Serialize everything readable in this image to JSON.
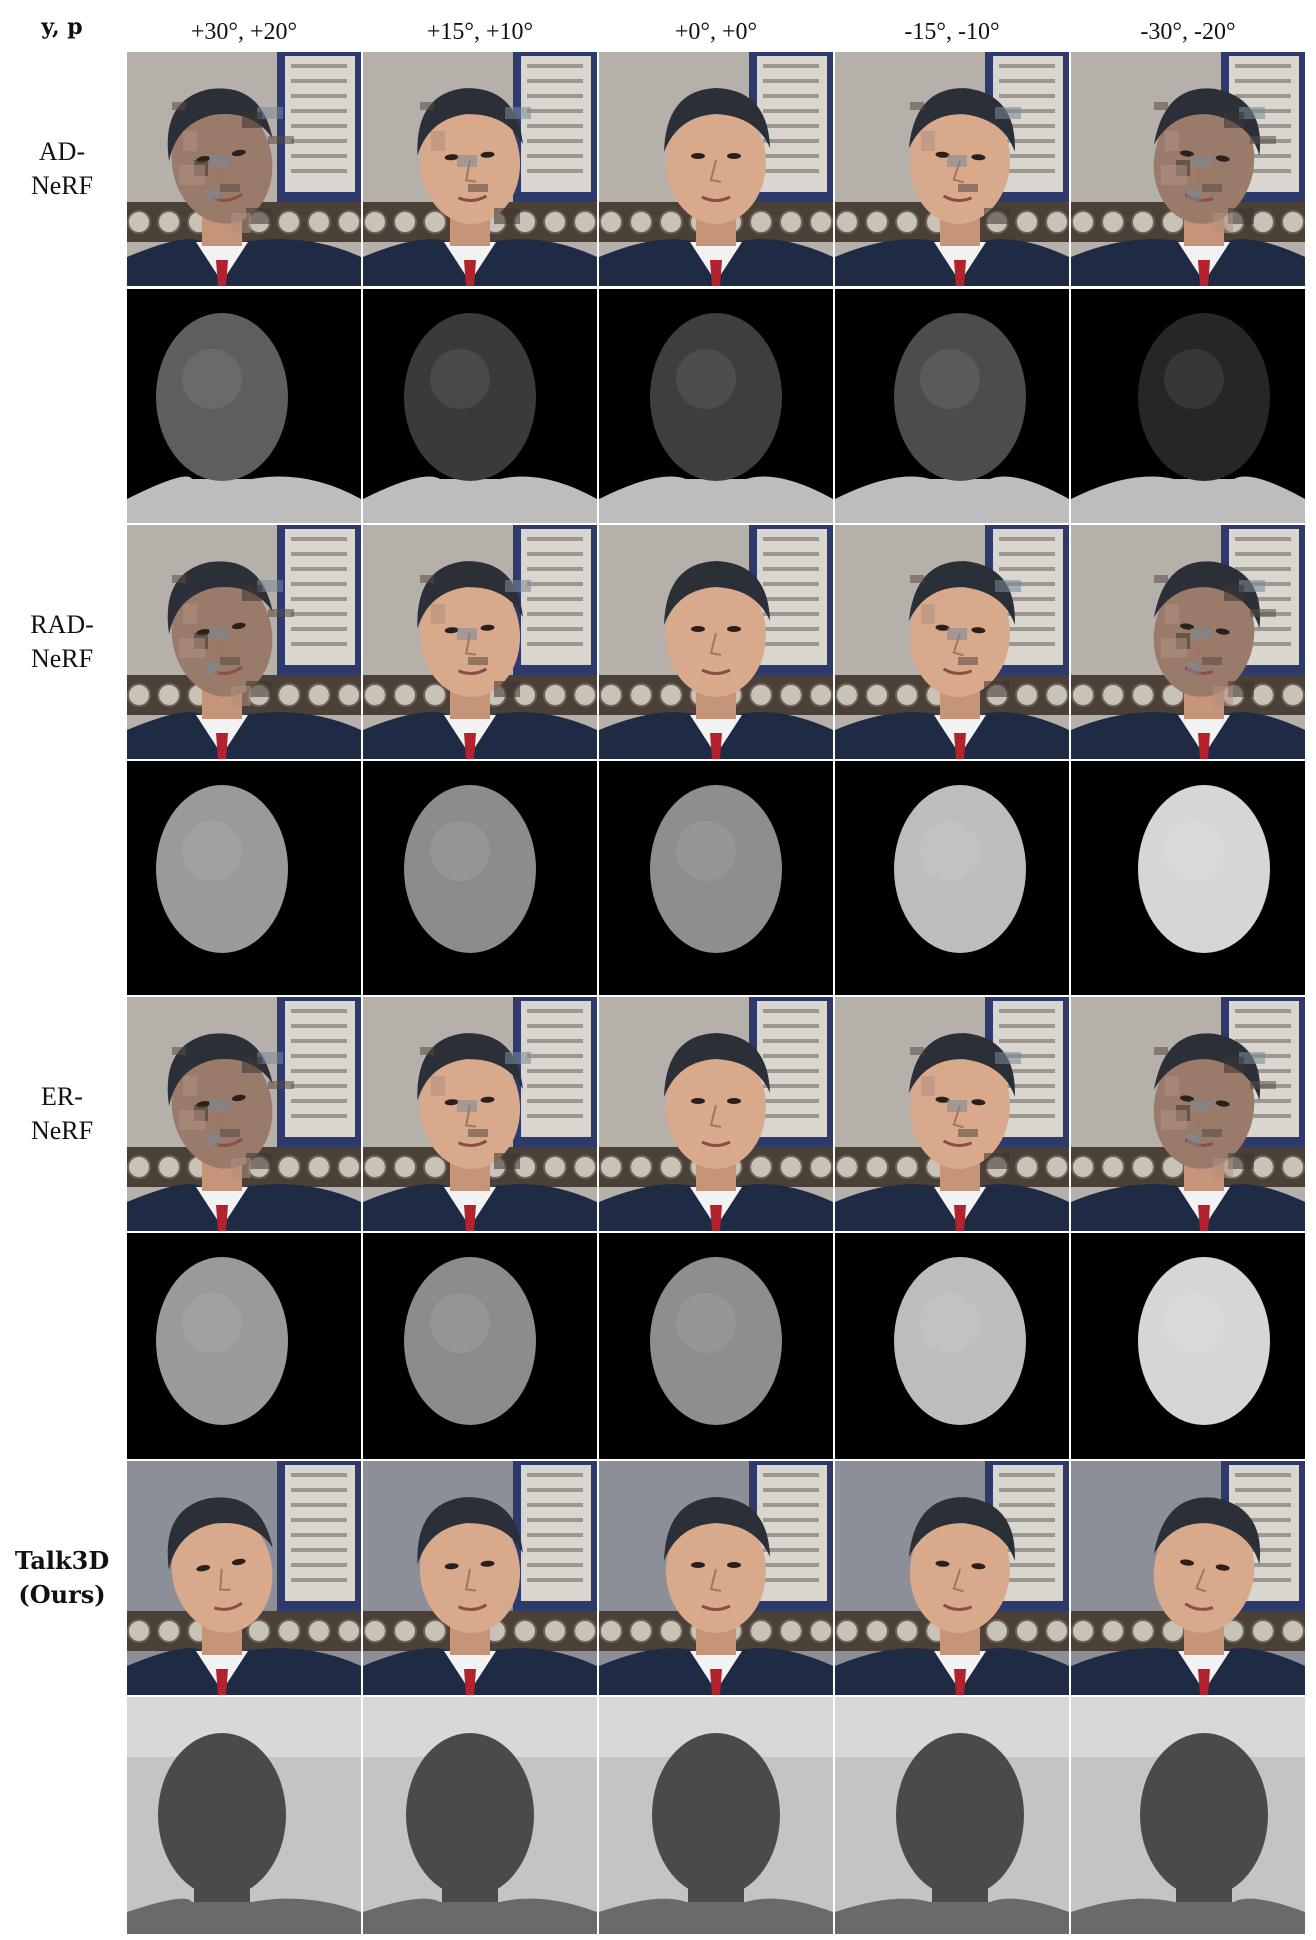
{
  "corner_label": "y, p",
  "columns": [
    {
      "label": "+30°, +20°"
    },
    {
      "label": "+15°, +10°"
    },
    {
      "label": "+0°, +0°"
    },
    {
      "label": "-15°, -10°"
    },
    {
      "label": "-30°, -20°"
    }
  ],
  "methods": [
    {
      "line1": "AD-",
      "line2": "NeRF",
      "bold": false,
      "depth_style": "black-bg"
    },
    {
      "line1": "RAD-",
      "line2": "NeRF",
      "bold": false,
      "depth_style": "black-bg"
    },
    {
      "line1": "ER-",
      "line2": "NeRF",
      "bold": false,
      "depth_style": "black-bg"
    },
    {
      "line1": "Talk3D",
      "line2": "(Ours)",
      "bold": true,
      "depth_style": "gray-bg"
    }
  ],
  "colors": {
    "suit": "#1f2a44",
    "shirt": "#f2f2f2",
    "tie": "#b3222d",
    "skin": "#d8a98a",
    "hair": "#2b2f38",
    "background_wall": "#b6b0aa",
    "board": "#2e3a6b",
    "shelf": "#4a4038"
  }
}
